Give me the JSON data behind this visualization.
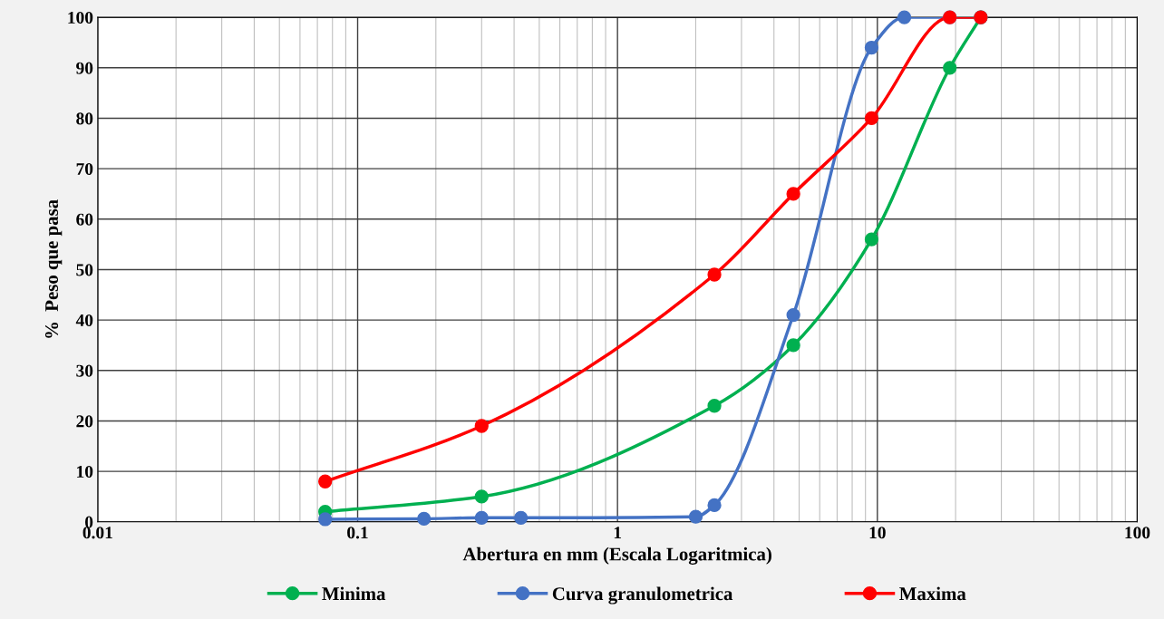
{
  "chart_data": {
    "type": "line",
    "xlabel": "Abertura en mm (Escala Logaritmica)",
    "ylabel": "%  Peso que pasa",
    "log": "x",
    "xlim": [
      0.01,
      100
    ],
    "xticks": [
      0.01,
      0.1,
      1,
      10,
      100
    ],
    "ylim": [
      0,
      100
    ],
    "yticks": [
      0,
      10,
      20,
      30,
      40,
      50,
      60,
      70,
      80,
      90,
      100
    ],
    "grid": true,
    "legend": "bottom",
    "marker": "circle",
    "line_style": "solid",
    "series": [
      {
        "name": "Minima",
        "color": "#00b050",
        "x": [
          0.075,
          0.3,
          2.36,
          4.75,
          9.5,
          19,
          25
        ],
        "values": [
          2,
          5,
          23,
          35,
          56,
          90,
          100
        ]
      },
      {
        "name": "Curva granulometrica",
        "color": "#4472c4",
        "x": [
          0.075,
          0.18,
          0.3,
          0.425,
          2.0,
          2.36,
          4.75,
          9.5,
          12.7,
          19,
          25
        ],
        "values": [
          0.5,
          0.6,
          0.8,
          0.8,
          1.0,
          3.3,
          41,
          94,
          100,
          100,
          100
        ]
      },
      {
        "name": "Maxima",
        "color": "#ff0000",
        "x": [
          0.075,
          0.3,
          2.36,
          4.75,
          9.5,
          19,
          25
        ],
        "values": [
          8,
          19,
          49,
          65,
          80,
          100,
          100
        ]
      }
    ]
  }
}
